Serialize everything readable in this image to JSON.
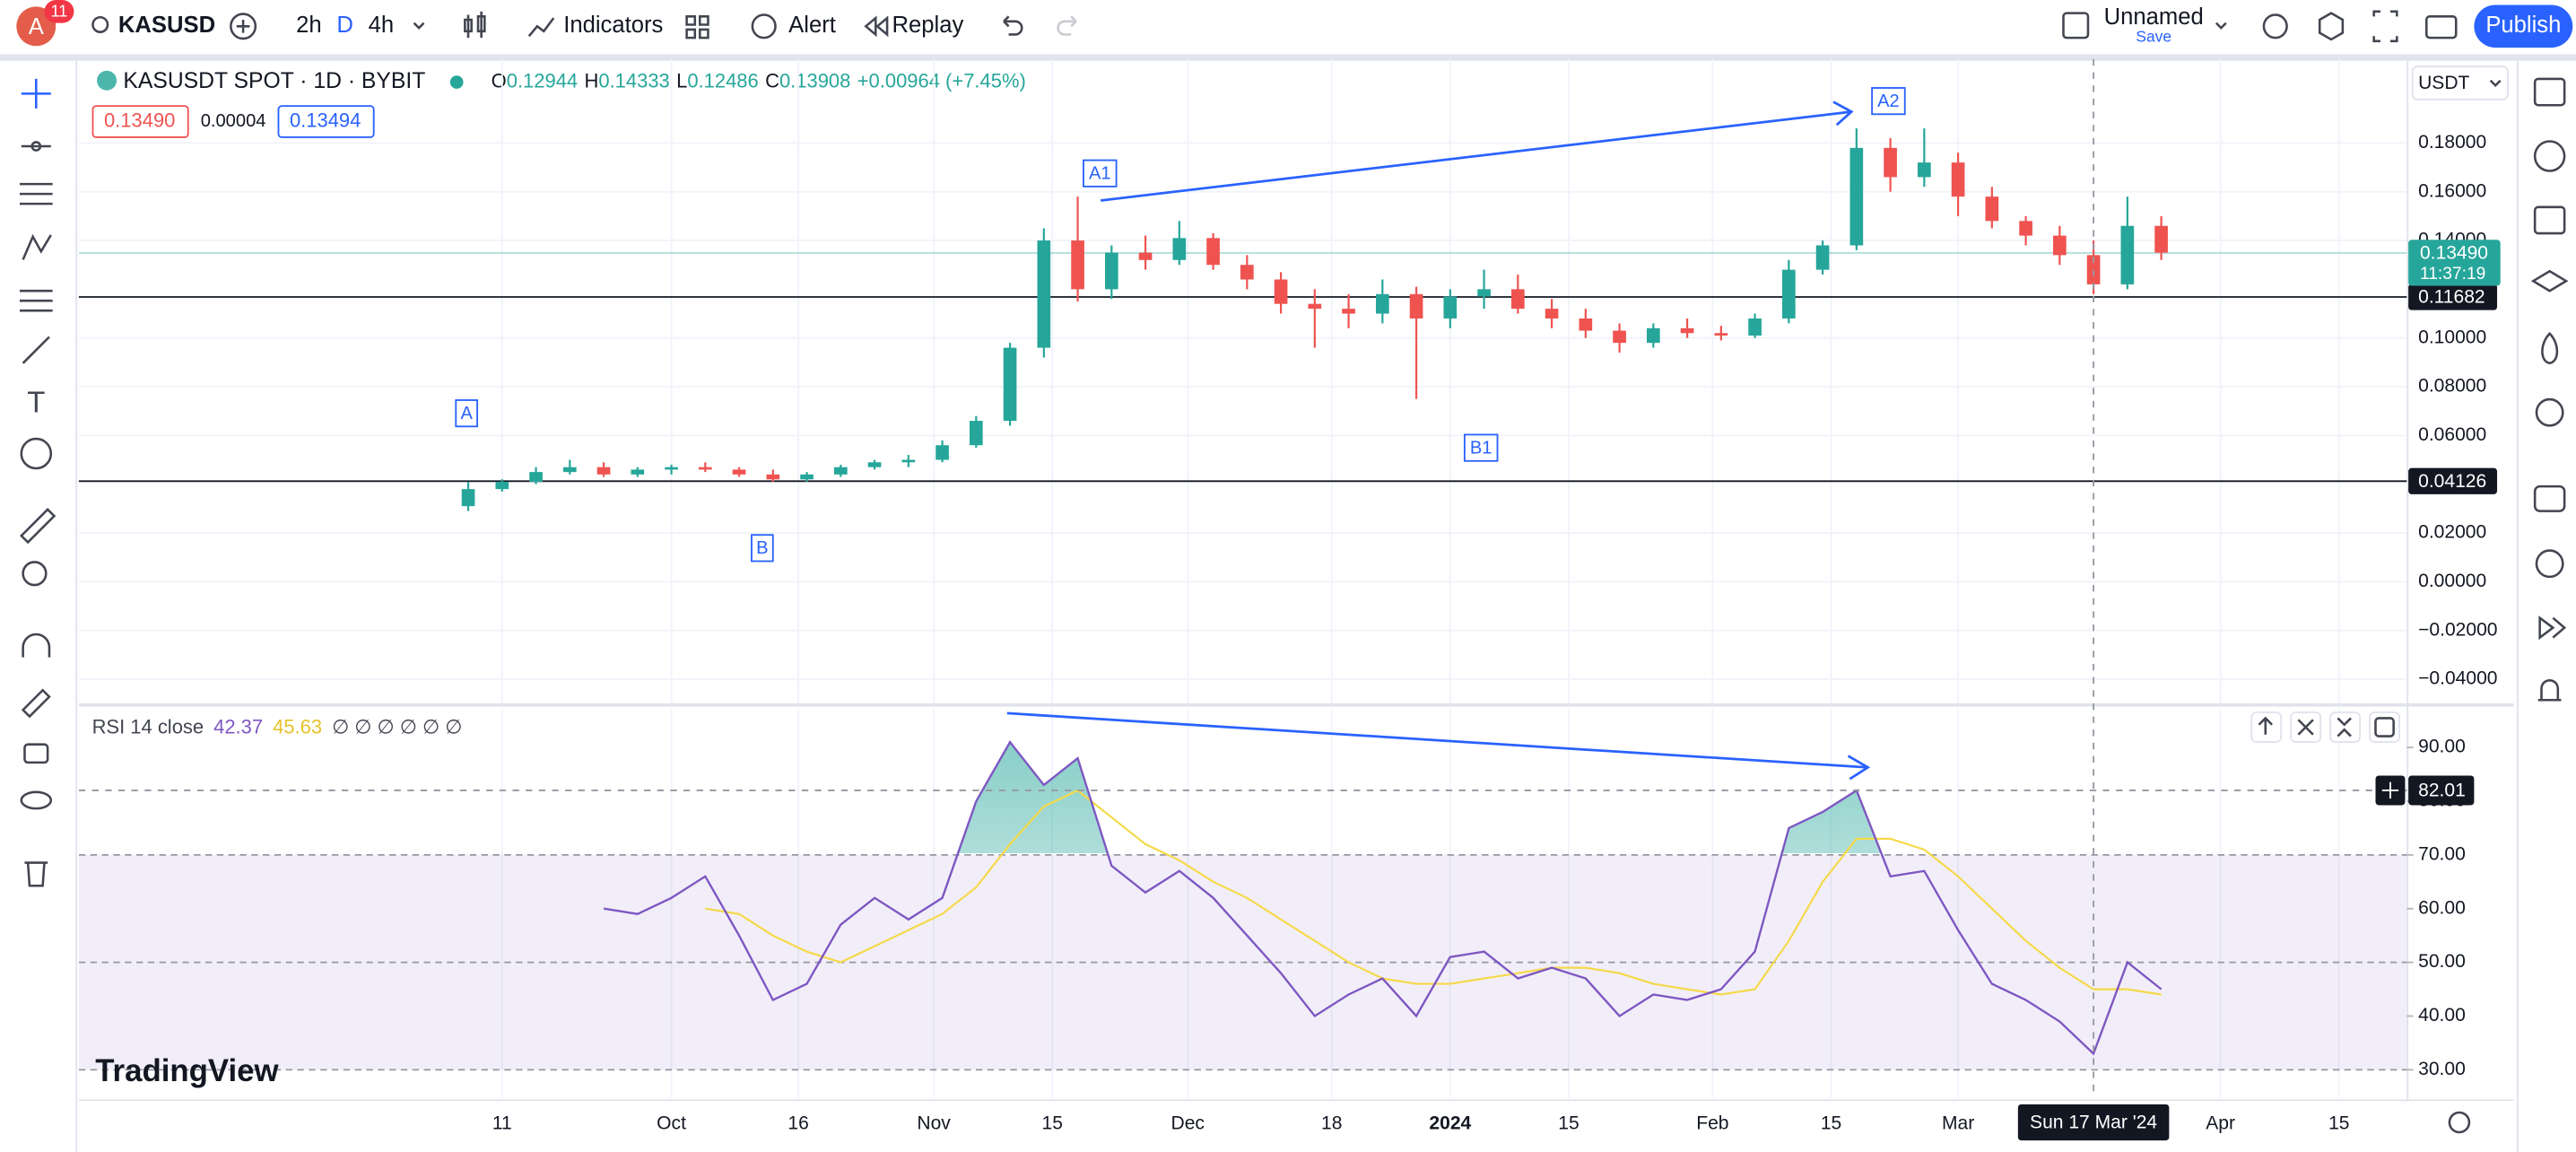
{
  "toolbar": {
    "avatar": "A",
    "notifications": "11",
    "symbol": "KASUSD",
    "intervals": [
      "2h",
      "D",
      "4h"
    ],
    "indicators": "Indicators",
    "alert": "Alert",
    "replay": "Replay",
    "layout_name": "Unnamed",
    "save": "Save",
    "publish": "Publish"
  },
  "chart": {
    "type": "candlestick",
    "title": "KASUSDT SPOT · 1D · BYBIT",
    "ohlc": [
      {
        "label": "O",
        "value": "0.12944"
      },
      {
        "label": "H",
        "value": "0.14333"
      },
      {
        "label": "L",
        "value": "0.12486"
      },
      {
        "label": "C",
        "value": "0.13908"
      }
    ],
    "change": "+0.00964 (+7.45%)",
    "bid": "0.13490",
    "spread": "0.00004",
    "ask": "0.13494",
    "currency": "USDT",
    "up_color": "#26a69a",
    "down_color": "#ef5350",
    "x": [
      "2023-09-07",
      "2023-09-11",
      "2023-09-15",
      "2023-09-19",
      "2023-09-23",
      "2023-09-27",
      "2023-10-01",
      "2023-10-05",
      "2023-10-09",
      "2023-10-13",
      "2023-10-17",
      "2023-10-21",
      "2023-10-25",
      "2023-10-29",
      "2023-11-02",
      "2023-11-06",
      "2023-11-10",
      "2023-11-14",
      "2023-11-18",
      "2023-11-22",
      "2023-11-26",
      "2023-11-30",
      "2023-12-04",
      "2023-12-08",
      "2023-12-12",
      "2023-12-16",
      "2023-12-20",
      "2023-12-24",
      "2023-12-28",
      "2024-01-01",
      "2024-01-05",
      "2024-01-09",
      "2024-01-13",
      "2024-01-17",
      "2024-01-21",
      "2024-01-25",
      "2024-01-29",
      "2024-02-02",
      "2024-02-06",
      "2024-02-10",
      "2024-02-14",
      "2024-02-18",
      "2024-02-22",
      "2024-02-26",
      "2024-03-01",
      "2024-03-05",
      "2024-03-09",
      "2024-03-13",
      "2024-03-17",
      "2024-03-21",
      "2024-03-25"
    ],
    "candles": [
      [
        0.031,
        0.041,
        0.029,
        0.038
      ],
      [
        0.038,
        0.042,
        0.037,
        0.041
      ],
      [
        0.041,
        0.047,
        0.04,
        0.045
      ],
      [
        0.045,
        0.05,
        0.044,
        0.047
      ],
      [
        0.047,
        0.049,
        0.043,
        0.044
      ],
      [
        0.044,
        0.047,
        0.043,
        0.046
      ],
      [
        0.046,
        0.048,
        0.044,
        0.047
      ],
      [
        0.047,
        0.049,
        0.045,
        0.046
      ],
      [
        0.046,
        0.047,
        0.043,
        0.044
      ],
      [
        0.044,
        0.046,
        0.041,
        0.042
      ],
      [
        0.042,
        0.045,
        0.041,
        0.044
      ],
      [
        0.044,
        0.048,
        0.043,
        0.047
      ],
      [
        0.047,
        0.05,
        0.046,
        0.049
      ],
      [
        0.049,
        0.052,
        0.047,
        0.05
      ],
      [
        0.05,
        0.058,
        0.049,
        0.056
      ],
      [
        0.056,
        0.068,
        0.055,
        0.066
      ],
      [
        0.066,
        0.098,
        0.064,
        0.096
      ],
      [
        0.096,
        0.145,
        0.092,
        0.14
      ],
      [
        0.14,
        0.158,
        0.115,
        0.12
      ],
      [
        0.12,
        0.138,
        0.116,
        0.135
      ],
      [
        0.135,
        0.142,
        0.128,
        0.132
      ],
      [
        0.132,
        0.148,
        0.13,
        0.141
      ],
      [
        0.141,
        0.143,
        0.128,
        0.13
      ],
      [
        0.13,
        0.134,
        0.12,
        0.124
      ],
      [
        0.124,
        0.127,
        0.11,
        0.114
      ],
      [
        0.114,
        0.12,
        0.096,
        0.112
      ],
      [
        0.112,
        0.118,
        0.104,
        0.11
      ],
      [
        0.11,
        0.124,
        0.106,
        0.118
      ],
      [
        0.118,
        0.121,
        0.075,
        0.108
      ],
      [
        0.108,
        0.12,
        0.104,
        0.117
      ],
      [
        0.117,
        0.128,
        0.112,
        0.12
      ],
      [
        0.12,
        0.126,
        0.11,
        0.112
      ],
      [
        0.112,
        0.116,
        0.104,
        0.108
      ],
      [
        0.108,
        0.112,
        0.1,
        0.103
      ],
      [
        0.103,
        0.106,
        0.094,
        0.098
      ],
      [
        0.098,
        0.106,
        0.096,
        0.104
      ],
      [
        0.104,
        0.108,
        0.1,
        0.102
      ],
      [
        0.102,
        0.105,
        0.099,
        0.101
      ],
      [
        0.101,
        0.11,
        0.1,
        0.108
      ],
      [
        0.108,
        0.132,
        0.106,
        0.128
      ],
      [
        0.128,
        0.14,
        0.126,
        0.138
      ],
      [
        0.138,
        0.186,
        0.136,
        0.178
      ],
      [
        0.178,
        0.182,
        0.16,
        0.166
      ],
      [
        0.166,
        0.186,
        0.162,
        0.172
      ],
      [
        0.172,
        0.176,
        0.15,
        0.158
      ],
      [
        0.158,
        0.162,
        0.145,
        0.148
      ],
      [
        0.148,
        0.15,
        0.138,
        0.142
      ],
      [
        0.142,
        0.146,
        0.13,
        0.134
      ],
      [
        0.134,
        0.14,
        0.118,
        0.122
      ],
      [
        0.122,
        0.158,
        0.12,
        0.146
      ],
      [
        0.146,
        0.15,
        0.132,
        0.135
      ]
    ],
    "xlim": [
      "2023-07-23",
      "2024-04-23"
    ],
    "xticks": [
      {
        "value": "2023-09-11",
        "label": "11"
      },
      {
        "value": "2023-10-01",
        "label": "Oct"
      },
      {
        "value": "2023-10-16",
        "label": "16"
      },
      {
        "value": "2023-11-01",
        "label": "Nov"
      },
      {
        "value": "2023-11-15",
        "label": "15"
      },
      {
        "value": "2023-12-01",
        "label": "Dec"
      },
      {
        "value": "2023-12-18",
        "label": "18"
      },
      {
        "value": "2024-01-01",
        "label": "2024"
      },
      {
        "value": "2024-01-15",
        "label": "15"
      },
      {
        "value": "2024-02-01",
        "label": "Feb"
      },
      {
        "value": "2024-02-15",
        "label": "15"
      },
      {
        "value": "2024-03-01",
        "label": "Mar"
      },
      {
        "value": "2024-04-01",
        "label": "Apr"
      },
      {
        "value": "2024-04-15",
        "label": "15"
      }
    ],
    "ylim": [
      -0.0499,
      0.2144
    ],
    "yticks": [
      {
        "value": 0.18,
        "label": "0.18000"
      },
      {
        "value": 0.16,
        "label": "0.16000"
      },
      {
        "value": 0.14,
        "label": "0.14000"
      },
      {
        "value": 0.1,
        "label": "0.10000"
      },
      {
        "value": 0.08,
        "label": "0.08000"
      },
      {
        "value": 0.06,
        "label": "0.06000"
      },
      {
        "value": 0.02,
        "label": "0.02000"
      },
      {
        "value": 0,
        "label": "0.00000"
      },
      {
        "value": -0.02,
        "label": "−0.02000"
      },
      {
        "value": -0.04,
        "label": "−0.04000"
      }
    ],
    "hlines": [
      {
        "value": 0.11682,
        "label": "0.11682"
      },
      {
        "value": 0.04126,
        "label": "0.04126"
      }
    ],
    "last_price": {
      "value": 0.1349,
      "label": "0.13490",
      "countdown": "11:37:19"
    },
    "annotations": [
      "A",
      "B",
      "A1",
      "B1",
      "A2"
    ],
    "crosshair": {
      "date": "2024-03-17",
      "label": "Sun 17 Mar '24"
    }
  },
  "rsi": {
    "type": "line",
    "title": "RSI 14 close",
    "value": "42.37",
    "ma_value": "45.63",
    "flags": "∅ ∅ ∅ ∅ ∅ ∅",
    "color": "#7e57c2",
    "ma_color": "#f5d94a",
    "values": [
      null,
      null,
      null,
      null,
      60,
      59,
      62,
      66,
      55,
      43,
      46,
      57,
      62,
      58,
      62,
      80,
      91,
      83,
      88,
      68,
      63,
      67,
      62,
      55,
      48,
      40,
      44,
      47,
      40,
      51,
      52,
      47,
      49,
      47,
      40,
      44,
      43,
      45,
      52,
      75,
      78,
      82,
      66,
      67,
      56,
      46,
      43,
      39,
      33,
      50,
      45
    ],
    "ma_values": [
      null,
      null,
      null,
      null,
      null,
      null,
      null,
      60,
      59,
      55,
      52,
      50,
      53,
      56,
      59,
      64,
      72,
      79,
      82,
      77,
      72,
      69,
      65,
      62,
      58,
      54,
      50,
      47,
      46,
      46,
      47,
      48,
      49,
      49,
      48,
      46,
      45,
      44,
      45,
      54,
      65,
      73,
      73,
      71,
      66,
      60,
      54,
      49,
      45,
      45,
      44
    ],
    "ylim": [
      24.8,
      97.3
    ],
    "yticks": [
      {
        "value": 90,
        "label": "90.00"
      },
      {
        "value": 80,
        "label": "80.00"
      },
      {
        "value": 70,
        "label": "70.00"
      },
      {
        "value": 60,
        "label": "60.00"
      },
      {
        "value": 50,
        "label": "50.00"
      },
      {
        "value": 40,
        "label": "40.00"
      },
      {
        "value": 30,
        "label": "30.00"
      }
    ],
    "band_upper": 70,
    "band_middle": 50,
    "band_lower": 30,
    "crosshair": {
      "value": 82.01,
      "label": "82.01"
    }
  },
  "brand": "TradingView"
}
